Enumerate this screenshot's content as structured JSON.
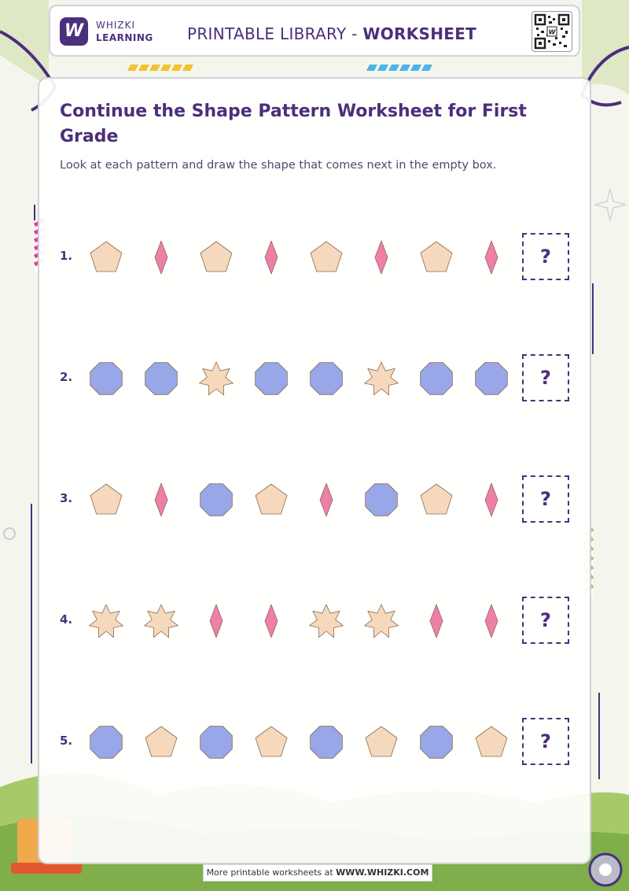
{
  "header": {
    "brand_line1": "WHIZKI",
    "brand_line2": "LEARNING",
    "logo_letter": "W",
    "title_prefix": "PRINTABLE LIBRARY - ",
    "title_bold": "WORKSHEET"
  },
  "worksheet": {
    "title": "Continue the Shape Pattern Worksheet for First Grade",
    "instructions": "Look at each pattern and draw the shape that comes next in the empty box.",
    "answer_placeholder": "?",
    "rows": [
      {
        "number": "1.",
        "shapes": [
          "pentagon",
          "diamond",
          "pentagon",
          "diamond",
          "pentagon",
          "diamond",
          "pentagon",
          "diamond"
        ]
      },
      {
        "number": "2.",
        "shapes": [
          "octagon",
          "octagon",
          "star",
          "octagon",
          "octagon",
          "star",
          "octagon",
          "octagon"
        ]
      },
      {
        "number": "3.",
        "shapes": [
          "pentagon",
          "diamond",
          "octagon",
          "pentagon",
          "diamond",
          "octagon",
          "pentagon",
          "diamond"
        ]
      },
      {
        "number": "4.",
        "shapes": [
          "star",
          "star",
          "diamond",
          "diamond",
          "star",
          "star",
          "diamond",
          "diamond"
        ]
      },
      {
        "number": "5.",
        "shapes": [
          "octagon",
          "pentagon",
          "octagon",
          "pentagon",
          "octagon",
          "pentagon",
          "octagon",
          "pentagon"
        ]
      }
    ]
  },
  "colors": {
    "brand": "#4b2f7c",
    "pentagon": "#f6d9bd",
    "diamond": "#ee7fa9",
    "octagon": "#97a7e8",
    "star": "#f6d9bd",
    "shape_stroke": "#8a6b4e"
  },
  "footer": {
    "text_prefix": "More printable worksheets at ",
    "text_bold": "WWW.WHIZKI.COM"
  }
}
